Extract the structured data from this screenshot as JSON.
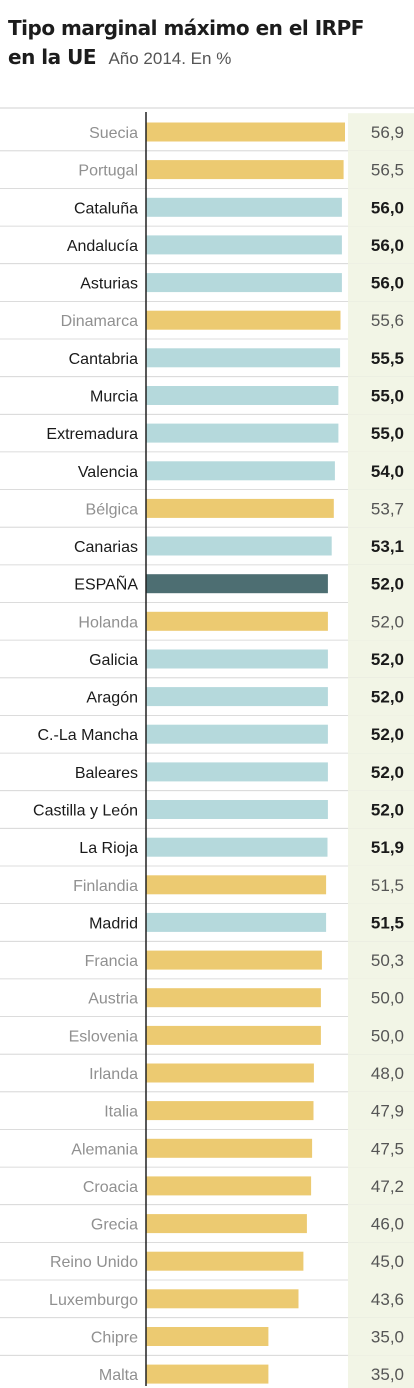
{
  "header": {
    "title_line1": "Tipo marginal máximo en el IRPF",
    "title_line2": "en la UE",
    "subtitle": "Año 2014. En %"
  },
  "colors": {
    "eu_country": "#ecca71",
    "spanish_region": "#b5d9dc",
    "spain": "#4d6e72",
    "value_band": "#f2f5e6",
    "label_highlight": "#1a1a1a",
    "label_muted": "#909090",
    "axis": "#222222",
    "separator": "#d0d0d0"
  },
  "chart_data": {
    "type": "bar",
    "orientation": "horizontal",
    "title": "Tipo marginal máximo en el IRPF en la UE",
    "subtitle": "Año 2014. En %",
    "xlim": [
      0,
      56.9
    ],
    "grid": false,
    "legend": "none",
    "categories": [
      "Suecia",
      "Portugal",
      "Cataluña",
      "Andalucía",
      "Asturias",
      "Dinamarca",
      "Cantabria",
      "Murcia",
      "Extremadura",
      "Valencia",
      "Bélgica",
      "Canarias",
      "ESPAÑA",
      "Holanda",
      "Galicia",
      "Aragón",
      "C.-La Mancha",
      "Baleares",
      "Castilla y León",
      "La Rioja",
      "Finlandia",
      "Madrid",
      "Francia",
      "Austria",
      "Eslovenia",
      "Irlanda",
      "Italia",
      "Alemania",
      "Croacia",
      "Grecia",
      "Reino Unido",
      "Luxemburgo",
      "Chipre",
      "Malta"
    ],
    "values": [
      56.9,
      56.5,
      56.0,
      56.0,
      56.0,
      55.6,
      55.5,
      55.0,
      55.0,
      54.0,
      53.7,
      53.1,
      52.0,
      52.0,
      52.0,
      52.0,
      52.0,
      52.0,
      52.0,
      51.9,
      51.5,
      51.5,
      50.3,
      50.0,
      50.0,
      48.0,
      47.9,
      47.5,
      47.2,
      46.0,
      45.0,
      43.6,
      35.0,
      35.0
    ],
    "value_labels": [
      "56,9",
      "56,5",
      "56,0",
      "56,0",
      "56,0",
      "55,6",
      "55,5",
      "55,0",
      "55,0",
      "54,0",
      "53,7",
      "53,1",
      "52,0",
      "52,0",
      "52,0",
      "52,0",
      "52,0",
      "52,0",
      "52,0",
      "51,9",
      "51,5",
      "51,5",
      "50,3",
      "50,0",
      "50,0",
      "48,0",
      "47,9",
      "47,5",
      "47,2",
      "46,0",
      "45,0",
      "43,6",
      "35,0",
      "35,0"
    ],
    "groups": [
      "eu",
      "eu",
      "region",
      "region",
      "region",
      "eu",
      "region",
      "region",
      "region",
      "region",
      "eu",
      "region",
      "spain",
      "eu",
      "region",
      "region",
      "region",
      "region",
      "region",
      "region",
      "eu",
      "region",
      "eu",
      "eu",
      "eu",
      "eu",
      "eu",
      "eu",
      "eu",
      "eu",
      "eu",
      "eu",
      "eu",
      "eu"
    ]
  }
}
